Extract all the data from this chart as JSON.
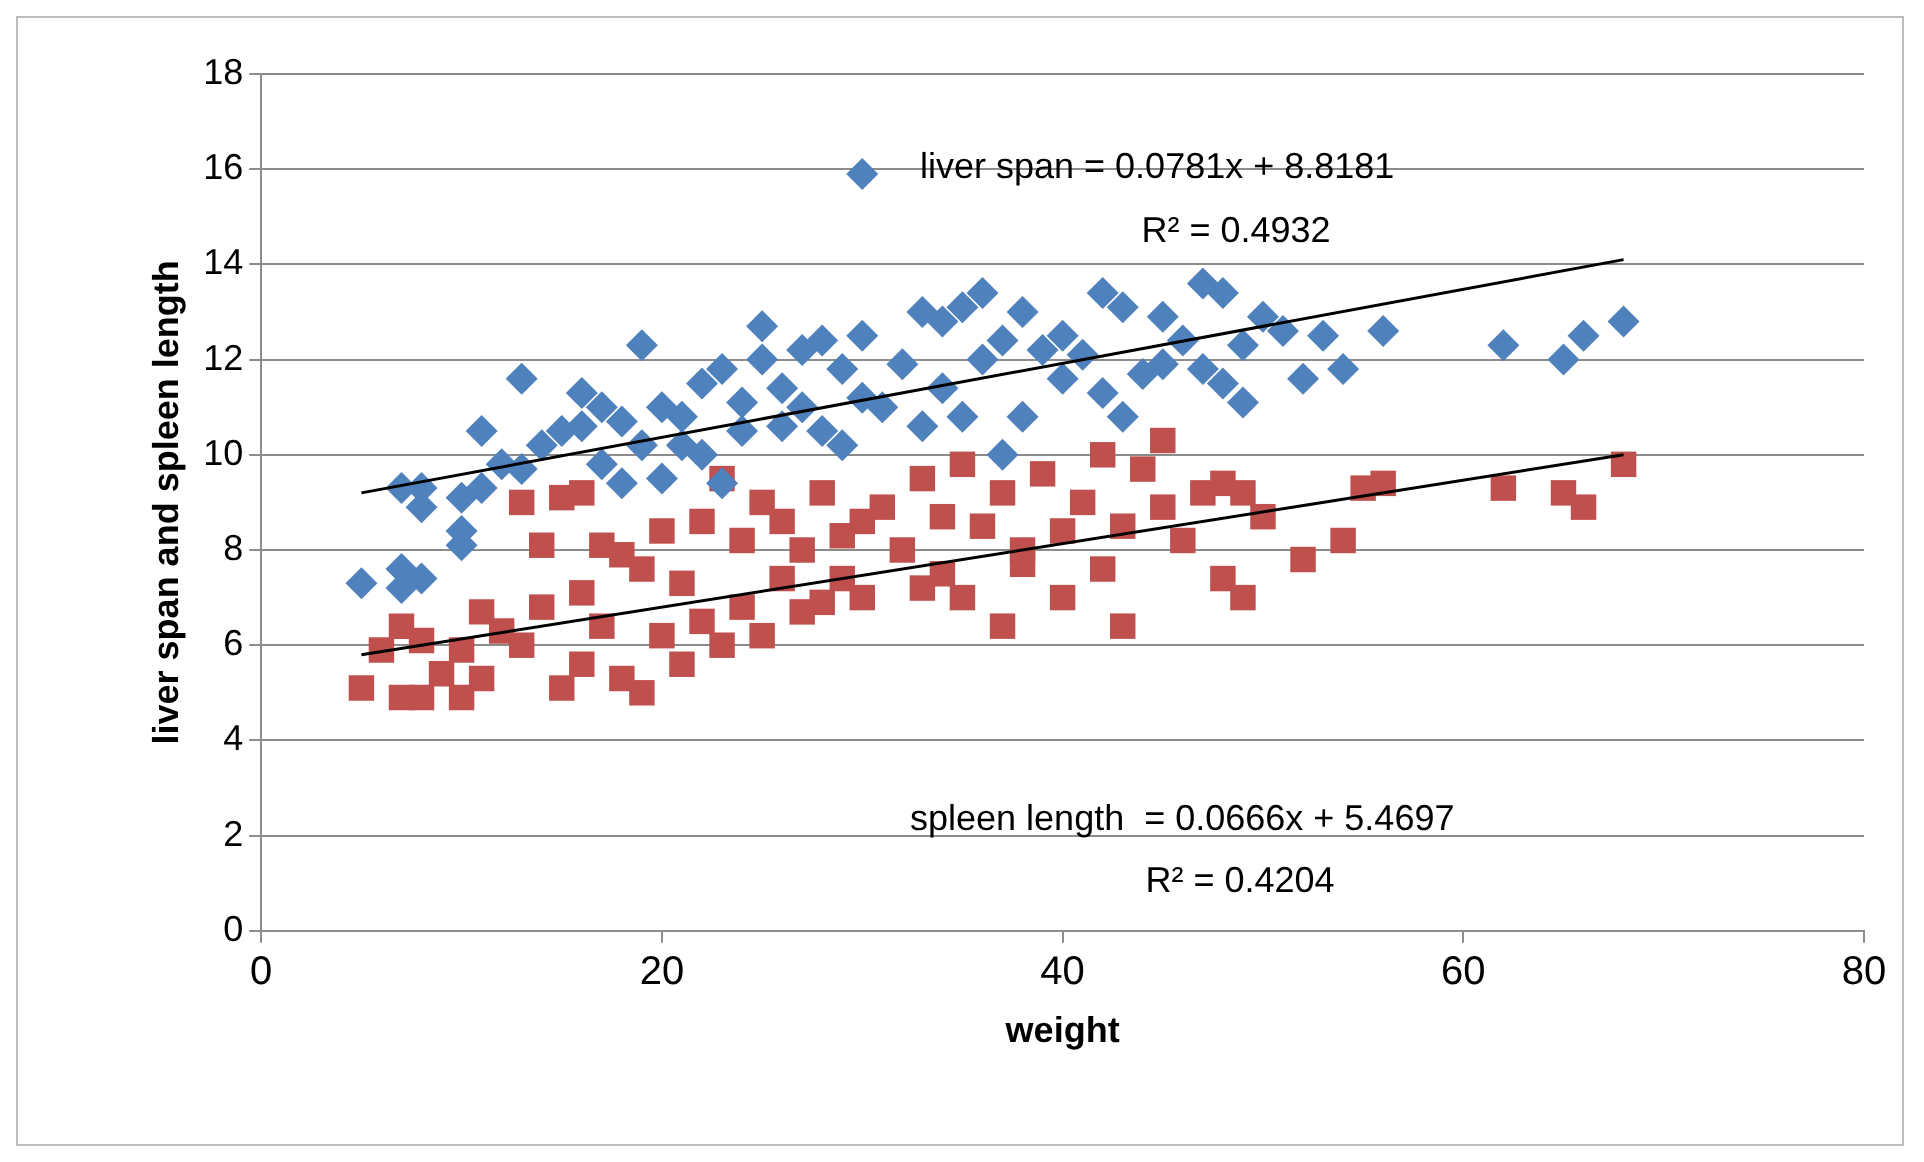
{
  "chart_data": {
    "type": "scatter",
    "xlabel": "weight",
    "ylabel": "liver span and spleen length",
    "xlim": [
      0,
      80
    ],
    "xticks": [
      0,
      20,
      40,
      60,
      80
    ],
    "ylim": [
      0,
      18
    ],
    "yticks": [
      0,
      2,
      4,
      6,
      8,
      10,
      12,
      14,
      16,
      18
    ],
    "grid": "y",
    "legend": false,
    "annotations": [
      "liver span = 0.0781x + 8.8181",
      "R² = 0.4932",
      "spleen length  = 0.0666x + 5.4697",
      "R² = 0.4204"
    ],
    "series": [
      {
        "type": "scatter",
        "marker": "diamond",
        "color": "#4f81bd",
        "x": [
          30,
          5,
          7,
          7,
          8,
          8,
          7,
          8,
          10,
          10,
          10,
          11,
          11,
          12,
          13,
          13,
          14,
          15,
          16,
          16,
          17,
          17,
          18,
          18,
          19,
          19,
          20,
          20,
          21,
          21,
          22,
          22,
          23,
          23,
          24,
          24,
          25,
          25,
          26,
          26,
          27,
          27,
          28,
          28,
          29,
          29,
          30,
          30,
          31,
          32,
          33,
          33,
          34,
          34,
          35,
          35,
          36,
          36,
          37,
          37,
          38,
          38,
          39,
          40,
          40,
          41,
          42,
          42,
          43,
          43,
          44,
          45,
          45,
          46,
          47,
          47,
          48,
          48,
          49,
          49,
          50,
          51,
          52,
          53,
          54,
          56,
          62,
          65,
          66,
          68
        ],
        "values": [
          15.9,
          7.3,
          7.6,
          9.3,
          9.3,
          8.9,
          7.2,
          7.4,
          8.4,
          8.1,
          9.1,
          9.3,
          10.5,
          9.8,
          11.6,
          9.7,
          10.2,
          10.5,
          11.3,
          10.6,
          11.0,
          9.8,
          10.7,
          9.4,
          12.3,
          10.2,
          11.0,
          9.5,
          10.2,
          10.8,
          11.5,
          10.0,
          11.8,
          9.4,
          11.1,
          10.5,
          12.7,
          12.0,
          11.4,
          10.6,
          12.2,
          11.0,
          12.4,
          10.5,
          11.8,
          10.2,
          12.5,
          11.2,
          11.0,
          11.9,
          13.0,
          10.6,
          12.8,
          11.4,
          13.1,
          10.8,
          13.4,
          12.0,
          12.4,
          10.0,
          13.0,
          10.8,
          12.2,
          12.5,
          11.6,
          12.1,
          13.4,
          11.3,
          13.1,
          10.8,
          11.7,
          12.9,
          11.9,
          12.4,
          13.6,
          11.8,
          13.4,
          11.5,
          12.3,
          11.1,
          12.9,
          12.6,
          11.6,
          12.5,
          11.8,
          12.6,
          12.3,
          12.0,
          12.5,
          12.8
        ]
      },
      {
        "type": "scatter",
        "marker": "square",
        "color": "#c0504d",
        "x": [
          5,
          6,
          7,
          7,
          8,
          8,
          9,
          10,
          10,
          11,
          11,
          12,
          13,
          13,
          14,
          14,
          15,
          15,
          16,
          16,
          16,
          17,
          17,
          18,
          18,
          19,
          19,
          20,
          20,
          21,
          21,
          22,
          22,
          23,
          23,
          24,
          24,
          25,
          25,
          26,
          26,
          27,
          27,
          28,
          28,
          29,
          29,
          30,
          30,
          31,
          32,
          33,
          33,
          34,
          34,
          35,
          35,
          36,
          37,
          37,
          38,
          38,
          39,
          40,
          40,
          41,
          42,
          42,
          43,
          43,
          44,
          45,
          45,
          46,
          47,
          48,
          48,
          49,
          49,
          50,
          52,
          54,
          55,
          56,
          62,
          65,
          66,
          68
        ],
        "values": [
          5.1,
          5.9,
          4.9,
          6.4,
          4.9,
          6.1,
          5.4,
          4.9,
          5.9,
          6.7,
          5.3,
          6.3,
          9.0,
          6.0,
          8.1,
          6.8,
          9.1,
          5.1,
          9.2,
          7.1,
          5.6,
          8.1,
          6.4,
          7.9,
          5.3,
          7.6,
          5.0,
          8.4,
          6.2,
          7.3,
          5.6,
          8.6,
          6.5,
          9.5,
          6.0,
          8.2,
          6.8,
          9.0,
          6.2,
          8.6,
          7.4,
          8.0,
          6.7,
          9.2,
          6.9,
          8.3,
          7.4,
          8.6,
          7.0,
          8.9,
          8.0,
          9.5,
          7.2,
          8.7,
          7.5,
          9.8,
          7.0,
          8.5,
          9.2,
          6.4,
          8.0,
          7.7,
          9.6,
          8.4,
          7.0,
          9.0,
          10.0,
          7.6,
          8.5,
          6.4,
          9.7,
          10.3,
          8.9,
          8.2,
          9.2,
          9.4,
          7.4,
          9.2,
          7.0,
          8.7,
          7.8,
          8.2,
          9.3,
          9.4,
          9.3,
          9.2,
          8.9,
          9.8
        ]
      },
      {
        "type": "line",
        "marker": "none",
        "color": "#000000",
        "x": [
          5,
          68
        ],
        "values": [
          9.2,
          14.1
        ]
      },
      {
        "type": "line",
        "marker": "none",
        "color": "#000000",
        "x": [
          5,
          68
        ],
        "values": [
          5.8,
          10.0
        ]
      }
    ]
  }
}
